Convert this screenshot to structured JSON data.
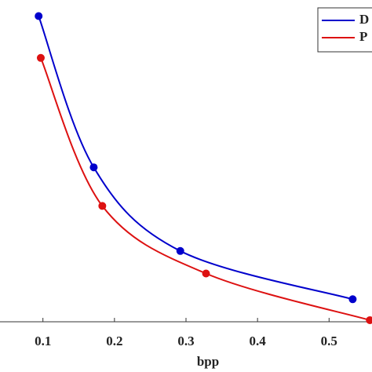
{
  "chart_data": {
    "type": "line",
    "x_label": "bpp",
    "xlim": [
      0.04,
      0.56
    ],
    "xticks": [
      0.1,
      0.2,
      0.3,
      0.4,
      0.5
    ],
    "ylim": [
      0,
      1
    ],
    "series": [
      {
        "name": "D",
        "color": "#0000cc",
        "x": [
          0.094,
          0.171,
          0.292,
          0.533
        ],
        "values": [
          0.95,
          0.48,
          0.22,
          0.07
        ]
      },
      {
        "name": "P",
        "color": "#dd1111",
        "x": [
          0.097,
          0.183,
          0.328,
          0.557
        ],
        "values": [
          0.82,
          0.36,
          0.15,
          0.005
        ]
      }
    ]
  }
}
